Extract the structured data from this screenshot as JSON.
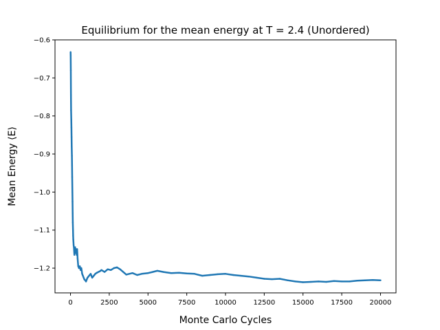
{
  "chart_data": {
    "type": "scatter",
    "title": "Equilibrium for the mean energy at T = 2.4 (Unordered)",
    "xlabel": "Monte Carlo Cycles",
    "ylabel": "Mean Energy ⟨E⟩",
    "xlim": [
      -1000,
      21000
    ],
    "ylim": [
      -1.265,
      -0.6
    ],
    "xticks": [
      0,
      2500,
      5000,
      7500,
      10000,
      12500,
      15000,
      17500,
      20000
    ],
    "xtick_labels": [
      "0",
      "2500",
      "5000",
      "7500",
      "10000",
      "12500",
      "15000",
      "17500",
      "20000"
    ],
    "yticks": [
      -1.2,
      -1.1,
      -1.0,
      -0.9,
      -0.8,
      -0.7,
      -0.6
    ],
    "ytick_labels": [
      "−1.2",
      "−1.1",
      "−1.0",
      "−0.9",
      "−0.8",
      "−0.7",
      "−0.6"
    ],
    "grid": false,
    "color": "#1f77b4",
    "series": [
      {
        "x": [
          5,
          10,
          20,
          30,
          40,
          50,
          60,
          70,
          80,
          90,
          100,
          110,
          120,
          130,
          140,
          150,
          160,
          170,
          180,
          190,
          200,
          220,
          250,
          280,
          300,
          330,
          360,
          400,
          430,
          460,
          500,
          550,
          600,
          650,
          700,
          750,
          800,
          850,
          900,
          950,
          1000,
          1050,
          1100,
          1200,
          1300,
          1400,
          1500,
          1600,
          1700,
          1800,
          1900,
          2000,
          2200,
          2400,
          2600,
          2800,
          3000,
          3200,
          3400,
          3600,
          3800,
          4000,
          4300,
          4600,
          5000,
          5300,
          5600,
          6000,
          6500,
          7000,
          7500,
          8000,
          8500,
          9000,
          9500,
          10000,
          10500,
          11000,
          11500,
          12000,
          12500,
          13000,
          13500,
          14000,
          14500,
          15000,
          15500,
          16000,
          16500,
          17000,
          17500,
          18000,
          18500,
          19000,
          19500,
          20000
        ],
        "y": [
          -0.632,
          -0.64,
          -0.68,
          -0.745,
          -0.785,
          -0.81,
          -0.83,
          -0.855,
          -0.88,
          -0.905,
          -0.93,
          -0.96,
          -1.0,
          -1.025,
          -1.055,
          -1.08,
          -1.1,
          -1.115,
          -1.125,
          -1.13,
          -1.14,
          -1.145,
          -1.165,
          -1.15,
          -1.145,
          -1.16,
          -1.15,
          -1.165,
          -1.15,
          -1.175,
          -1.195,
          -1.2,
          -1.195,
          -1.205,
          -1.2,
          -1.215,
          -1.22,
          -1.225,
          -1.23,
          -1.232,
          -1.235,
          -1.23,
          -1.225,
          -1.22,
          -1.215,
          -1.225,
          -1.22,
          -1.215,
          -1.212,
          -1.21,
          -1.208,
          -1.205,
          -1.21,
          -1.203,
          -1.205,
          -1.2,
          -1.198,
          -1.203,
          -1.21,
          -1.217,
          -1.215,
          -1.213,
          -1.218,
          -1.215,
          -1.213,
          -1.21,
          -1.207,
          -1.21,
          -1.213,
          -1.212,
          -1.214,
          -1.215,
          -1.22,
          -1.218,
          -1.216,
          -1.215,
          -1.218,
          -1.22,
          -1.222,
          -1.225,
          -1.228,
          -1.229,
          -1.228,
          -1.232,
          -1.235,
          -1.237,
          -1.236,
          -1.235,
          -1.236,
          -1.234,
          -1.235,
          -1.235,
          -1.233,
          -1.232,
          -1.231,
          -1.232
        ]
      }
    ]
  }
}
